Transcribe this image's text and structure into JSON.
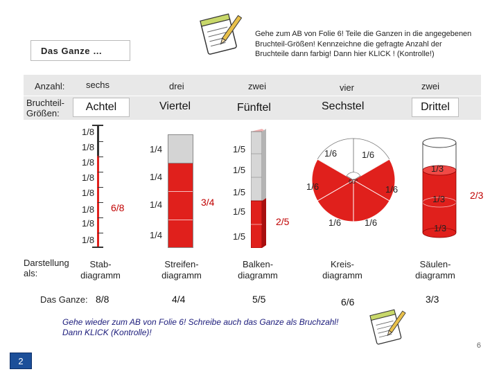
{
  "title": "Das Ganze …",
  "instructions": "Gehe zum AB von Folie 6! Teile die Ganzen in die angegebenen Bruchteil-Größen! Kennzeichne die gefragte Anzahl der Bruchteile dann farbig! Dann hier KLICK ! (Kontrolle!)",
  "rows": {
    "anzahl_label": "Anzahl:",
    "groessen_label": "Bruchteil-Größen:",
    "darstellung_label": "Darstellung als:",
    "ganze_label": "Das Ganze:"
  },
  "columns": [
    {
      "anzahl": "sechs",
      "groesse": "Achtel",
      "darstellung": "Stab-diagramm",
      "ganze": "8/8"
    },
    {
      "anzahl": "drei",
      "groesse": "Viertel",
      "darstellung": "Streifen-diagramm",
      "ganze": "4/4"
    },
    {
      "anzahl": "zwei",
      "groesse": "Fünftel",
      "darstellung": "Balken-diagramm",
      "ganze": "5/5"
    },
    {
      "anzahl": "vier",
      "groesse": "Sechstel",
      "darstellung": "Kreis-diagramm",
      "ganze": "6/6"
    },
    {
      "anzahl": "zwei",
      "groesse": "Drittel",
      "darstellung": "Säulen-diagramm",
      "ganze": "3/3"
    }
  ],
  "stab": {
    "labels": [
      "1/8",
      "1/8",
      "1/8",
      "1/8",
      "1/8",
      "1/8",
      "1/8",
      "1/8"
    ],
    "result": "6/8",
    "filled_parts": 6
  },
  "streifen": {
    "labels": [
      "1/4",
      "1/4",
      "1/4",
      "1/4"
    ],
    "result": "3/4",
    "filled_parts": 3
  },
  "balken": {
    "labels": [
      "1/5",
      "1/5",
      "1/5",
      "1/5",
      "1/5"
    ],
    "result": "2/5",
    "filled_parts": 2
  },
  "kreis": {
    "labels": [
      "1/6",
      "1/6",
      "1/6",
      "1/6",
      "1/6",
      "1/6"
    ],
    "angle": "60°",
    "filled_parts": 4
  },
  "saeule": {
    "labels": [
      "1/3",
      "1/3",
      "1/3"
    ],
    "result": "2/3",
    "filled_parts": 2
  },
  "footer": "Gehe wieder zum AB von Folie 6! Schreibe auch das Ganze als Bruchzahl! Dann KLICK (Kontrolle)!",
  "page_number": "6",
  "slide_button": "2",
  "colors": {
    "red": "#e0201c",
    "grey": "#d4d4d4",
    "band": "#e8e8e8",
    "dark_red": "#c00000"
  }
}
